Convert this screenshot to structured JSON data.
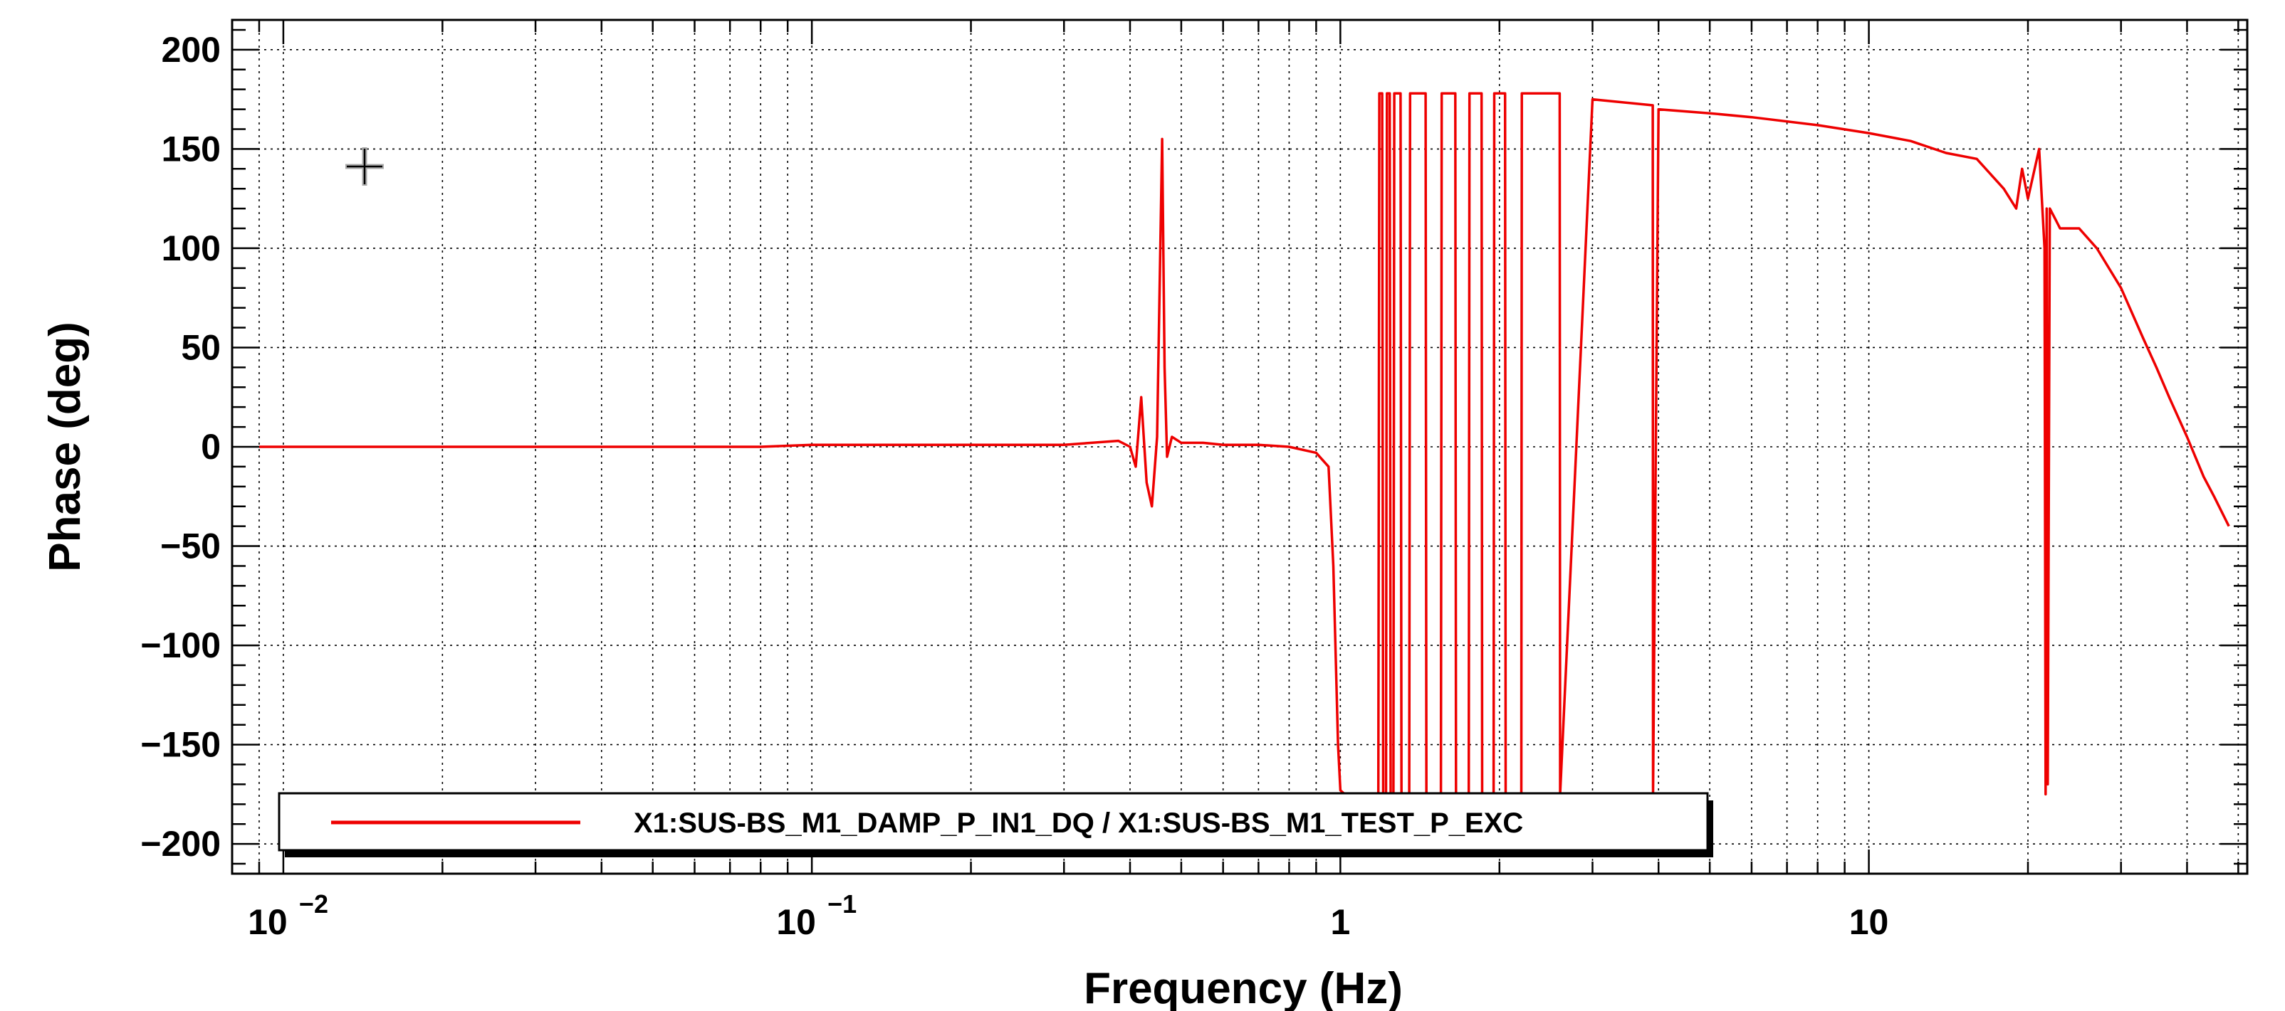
{
  "chart_data": {
    "type": "line",
    "xlabel": "Frequency (Hz)",
    "ylabel": "Phase (deg)",
    "x_scale": "log",
    "xlim": [
      0.008,
      52
    ],
    "ylim": [
      -215,
      215
    ],
    "x_ticks": [
      {
        "value": 0.01,
        "base": "10",
        "exp": "−2"
      },
      {
        "value": 0.1,
        "base": "10",
        "exp": "−1"
      },
      {
        "value": 1,
        "label": "1"
      },
      {
        "value": 10,
        "label": "10"
      }
    ],
    "y_ticks": [
      {
        "value": 200,
        "label": "200"
      },
      {
        "value": 150,
        "label": "150"
      },
      {
        "value": 100,
        "label": "100"
      },
      {
        "value": 50,
        "label": "50"
      },
      {
        "value": 0,
        "label": "0"
      },
      {
        "value": -50,
        "label": "−50"
      },
      {
        "value": -100,
        "label": "−100"
      },
      {
        "value": -150,
        "label": "−150"
      },
      {
        "value": -200,
        "label": "−200"
      }
    ],
    "grid": true,
    "legend_position": "bottom-left",
    "series": [
      {
        "name": "X1:SUS-BS_M1_DAMP_P_IN1_DQ / X1:SUS-BS_M1_TEST_P_EXC",
        "color": "#ee0000",
        "x": [
          0.009,
          0.02,
          0.05,
          0.08,
          0.1,
          0.15,
          0.2,
          0.3,
          0.38,
          0.4,
          0.41,
          0.42,
          0.43,
          0.44,
          0.45,
          0.46,
          0.465,
          0.47,
          0.48,
          0.5,
          0.55,
          0.6,
          0.7,
          0.8,
          0.9,
          0.95,
          0.97,
          0.99,
          1.0,
          1.02,
          1.05,
          1.1,
          1.18,
          1.185,
          1.2,
          1.205,
          1.22,
          1.225,
          1.24,
          1.245,
          1.26,
          1.265,
          1.3,
          1.305,
          1.35,
          1.355,
          1.45,
          1.455,
          1.55,
          1.555,
          1.65,
          1.655,
          1.75,
          1.755,
          1.85,
          1.855,
          1.95,
          1.955,
          2.05,
          2.055,
          2.2,
          2.205,
          2.6,
          2.605,
          3.0,
          3.9,
          3.905,
          4.0,
          5.0,
          6.0,
          8.0,
          10.0,
          12.0,
          14.0,
          16.0,
          18.0,
          19.0,
          19.5,
          20.0,
          21.0,
          21.5,
          21.6,
          21.7,
          21.8,
          22.0,
          22.5,
          23.0,
          25.0,
          27.0,
          30.0,
          33.0,
          35.0,
          37.0,
          40.0,
          43.0,
          45.0,
          48.0
        ],
        "y": [
          0,
          0,
          0,
          0,
          1,
          1,
          1,
          1,
          3,
          0,
          -10,
          25,
          -18,
          -30,
          5,
          155,
          40,
          -5,
          5,
          2,
          2,
          1,
          1,
          0,
          -3,
          -10,
          -60,
          -150,
          -173,
          -175,
          -175,
          -175,
          -175,
          178,
          178,
          -175,
          -175,
          178,
          178,
          -175,
          -175,
          178,
          178,
          -175,
          -175,
          178,
          178,
          -175,
          -175,
          178,
          178,
          -175,
          -175,
          178,
          178,
          -175,
          -175,
          178,
          178,
          -175,
          -175,
          178,
          178,
          -175,
          175,
          172,
          -175,
          170,
          168,
          166,
          162,
          158,
          154,
          148,
          145,
          130,
          120,
          140,
          125,
          150,
          100,
          -175,
          120,
          -170,
          120,
          115,
          110,
          110,
          100,
          80,
          55,
          40,
          25,
          5,
          -15,
          -25,
          -40
        ]
      }
    ]
  }
}
